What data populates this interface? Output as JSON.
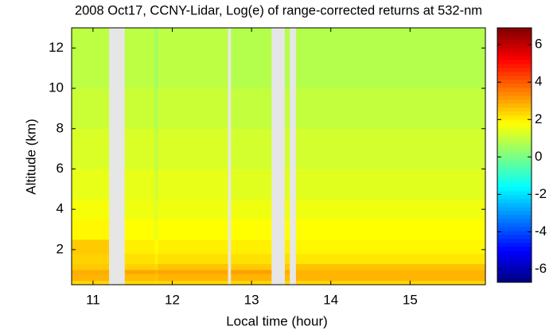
{
  "chart_data": {
    "type": "heatmap",
    "title": "2008 Oct17, CCNY-Lidar, Log(e) of range-corrected returns at 532-nm",
    "xlabel": "Local time (hour)",
    "ylabel": "Altitude (km)",
    "colormap": "jet",
    "missing_color": "#e6e6e6",
    "xlim": [
      10.73,
      15.95
    ],
    "xticks": [
      11,
      12,
      13,
      14,
      15
    ],
    "ylim": [
      0.26,
      13
    ],
    "yticks": [
      2,
      4,
      6,
      8,
      10,
      12
    ],
    "clim": [
      -6.7,
      6.9
    ],
    "cticks": [
      -6,
      -4,
      -2,
      0,
      2,
      4,
      6
    ],
    "xbins": [
      10.73,
      11.2,
      11.4,
      11.78,
      11.82,
      12.7,
      12.74,
      13.25,
      13.42,
      13.48,
      13.56,
      15.95
    ],
    "ybins": [
      0.26,
      0.45,
      0.8,
      1.0,
      1.3,
      1.8,
      2.5,
      3.5,
      4.5,
      6,
      8,
      10,
      13
    ],
    "values": [
      [
        2.3,
        null,
        2.3,
        2.2,
        2.3,
        null,
        2.3,
        null,
        2.3,
        null,
        2.3
      ],
      [
        2.8,
        null,
        2.7,
        2.6,
        2.8,
        null,
        2.8,
        null,
        2.7,
        null,
        2.8
      ],
      [
        2.9,
        null,
        3.0,
        2.9,
        3.0,
        null,
        3.1,
        null,
        2.9,
        null,
        2.8
      ],
      [
        2.5,
        null,
        2.4,
        2.3,
        2.6,
        null,
        2.5,
        null,
        2.5,
        null,
        2.6
      ],
      [
        2.4,
        null,
        2.2,
        2.0,
        2.2,
        null,
        2.2,
        null,
        2.2,
        null,
        2.1
      ],
      [
        2.5,
        null,
        2.0,
        1.8,
        2.0,
        null,
        2.0,
        null,
        2.0,
        null,
        1.9
      ],
      [
        1.9,
        null,
        1.8,
        1.5,
        1.8,
        null,
        1.8,
        null,
        1.8,
        null,
        1.8
      ],
      [
        1.7,
        null,
        1.6,
        1.3,
        1.6,
        null,
        1.6,
        null,
        1.6,
        null,
        1.6
      ],
      [
        1.5,
        null,
        1.5,
        1.1,
        1.5,
        null,
        1.4,
        null,
        1.4,
        null,
        1.4
      ],
      [
        1.3,
        null,
        1.3,
        0.9,
        1.3,
        null,
        1.2,
        null,
        1.2,
        null,
        1.2
      ],
      [
        1.1,
        null,
        1.1,
        0.7,
        1.1,
        null,
        1.0,
        null,
        1.0,
        null,
        1.0
      ],
      [
        0.9,
        null,
        0.9,
        0.5,
        0.9,
        null,
        0.8,
        null,
        0.8,
        null,
        0.8
      ]
    ]
  }
}
